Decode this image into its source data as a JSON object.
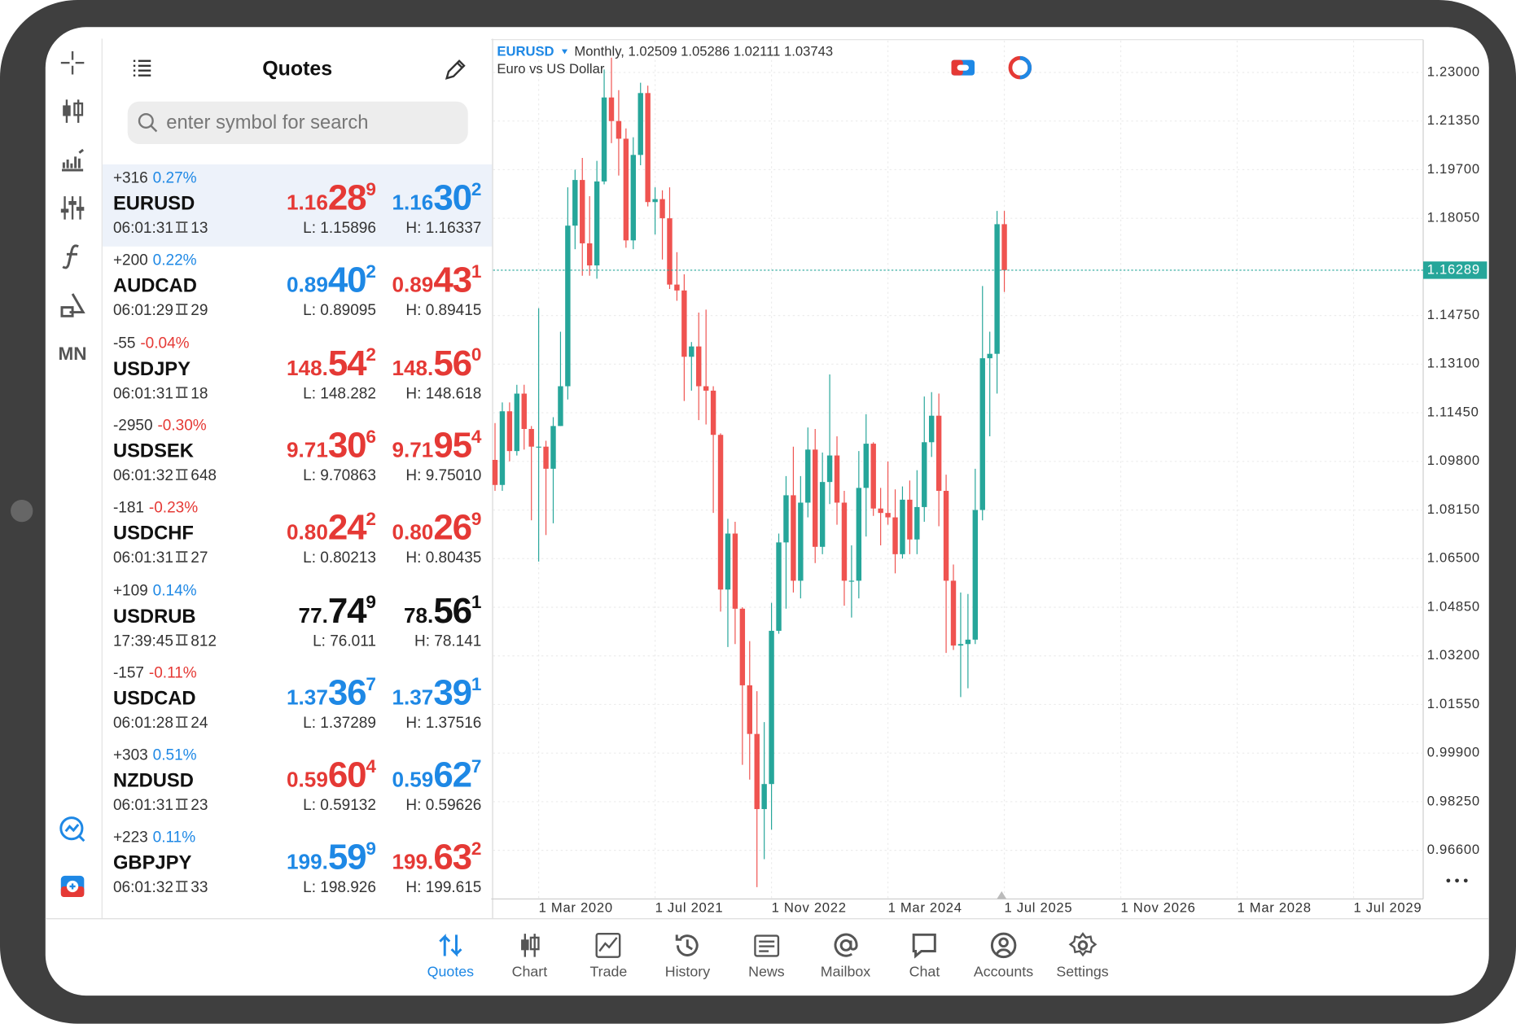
{
  "header": {
    "title": "Quotes"
  },
  "search_placeholder": "enter symbol for search",
  "toolbar_timeframe": "MN",
  "quotes": [
    {
      "change": "+316",
      "percent": "0.27%",
      "percent_color": "#1e88e5",
      "symbol": "EURUSD",
      "time": "06:01:31",
      "spread": "13",
      "bid": {
        "big": "1.16",
        "mid": "28",
        "sup": "9",
        "color": "#e53935"
      },
      "ask": {
        "big": "1.16",
        "mid": "30",
        "sup": "2",
        "color": "#1e88e5"
      },
      "low": "L: 1.15896",
      "high": "H: 1.16337",
      "selected": true
    },
    {
      "change": "+200",
      "percent": "0.22%",
      "percent_color": "#1e88e5",
      "symbol": "AUDCAD",
      "time": "06:01:29",
      "spread": "29",
      "bid": {
        "big": "0.89",
        "mid": "40",
        "sup": "2",
        "color": "#1e88e5"
      },
      "ask": {
        "big": "0.89",
        "mid": "43",
        "sup": "1",
        "color": "#e53935"
      },
      "low": "L: 0.89095",
      "high": "H: 0.89415"
    },
    {
      "change": "-55",
      "percent": "-0.04%",
      "percent_color": "#e53935",
      "symbol": "USDJPY",
      "time": "06:01:31",
      "spread": "18",
      "bid": {
        "big": "148.",
        "mid": "54",
        "sup": "2",
        "color": "#e53935"
      },
      "ask": {
        "big": "148.",
        "mid": "56",
        "sup": "0",
        "color": "#e53935"
      },
      "low": "L: 148.282",
      "high": "H: 148.618"
    },
    {
      "change": "-2950",
      "percent": "-0.30%",
      "percent_color": "#e53935",
      "symbol": "USDSEK",
      "time": "06:01:32",
      "spread": "648",
      "bid": {
        "big": "9.71",
        "mid": "30",
        "sup": "6",
        "color": "#e53935"
      },
      "ask": {
        "big": "9.71",
        "mid": "95",
        "sup": "4",
        "color": "#e53935"
      },
      "low": "L: 9.70863",
      "high": "H: 9.75010"
    },
    {
      "change": "-181",
      "percent": "-0.23%",
      "percent_color": "#e53935",
      "symbol": "USDCHF",
      "time": "06:01:31",
      "spread": "27",
      "bid": {
        "big": "0.80",
        "mid": "24",
        "sup": "2",
        "color": "#e53935"
      },
      "ask": {
        "big": "0.80",
        "mid": "26",
        "sup": "9",
        "color": "#e53935"
      },
      "low": "L: 0.80213",
      "high": "H: 0.80435"
    },
    {
      "change": "+109",
      "percent": "0.14%",
      "percent_color": "#1e88e5",
      "symbol": "USDRUB",
      "time": "17:39:45",
      "spread": "812",
      "bid": {
        "big": "77.",
        "mid": "74",
        "sup": "9",
        "color": "#111111"
      },
      "ask": {
        "big": "78.",
        "mid": "56",
        "sup": "1",
        "color": "#111111"
      },
      "low": "L: 76.011",
      "high": "H: 78.141"
    },
    {
      "change": "-157",
      "percent": "-0.11%",
      "percent_color": "#e53935",
      "symbol": "USDCAD",
      "time": "06:01:28",
      "spread": "24",
      "bid": {
        "big": "1.37",
        "mid": "36",
        "sup": "7",
        "color": "#1e88e5"
      },
      "ask": {
        "big": "1.37",
        "mid": "39",
        "sup": "1",
        "color": "#1e88e5"
      },
      "low": "L: 1.37289",
      "high": "H: 1.37516"
    },
    {
      "change": "+303",
      "percent": "0.51%",
      "percent_color": "#1e88e5",
      "symbol": "NZDUSD",
      "time": "06:01:31",
      "spread": "23",
      "bid": {
        "big": "0.59",
        "mid": "60",
        "sup": "4",
        "color": "#e53935"
      },
      "ask": {
        "big": "0.59",
        "mid": "62",
        "sup": "7",
        "color": "#1e88e5"
      },
      "low": "L: 0.59132",
      "high": "H: 0.59626"
    },
    {
      "change": "+223",
      "percent": "0.11%",
      "percent_color": "#1e88e5",
      "symbol": "GBPJPY",
      "time": "06:01:32",
      "spread": "33",
      "bid": {
        "big": "199.",
        "mid": "59",
        "sup": "9",
        "color": "#1e88e5"
      },
      "ask": {
        "big": "199.",
        "mid": "63",
        "sup": "2",
        "color": "#e53935"
      },
      "low": "L: 198.926",
      "high": "H: 199.615"
    }
  ],
  "chart_data": {
    "type": "candlestick",
    "symbol": "EURUSD",
    "info": "Monthly, 1.02509 1.05286 1.02111 1.03743",
    "description": "Euro vs US Dollar",
    "up_color": "#26a69a",
    "down_color": "#ef5350",
    "grid": true,
    "xlim": [
      "2019-08-23",
      "2030-04-18"
    ],
    "xticks": [
      {
        "value": "2020-03-01",
        "label": "1 Mar 2020"
      },
      {
        "value": "2021-07-01",
        "label": "1 Jul 2021"
      },
      {
        "value": "2022-11-01",
        "label": "1 Nov 2022"
      },
      {
        "value": "2024-03-01",
        "label": "1 Mar 2024"
      },
      {
        "value": "2025-07-01",
        "label": "1 Jul 2025"
      },
      {
        "value": "2026-11-01",
        "label": "1 Nov 2026"
      },
      {
        "value": "2028-03-01",
        "label": "1 Mar 2028"
      },
      {
        "value": "2029-07-01",
        "label": "1 Jul 2029"
      }
    ],
    "ylim": [
      0.9495,
      1.2408
    ],
    "yticks": [
      {
        "value": 1.23,
        "label": "1.23000"
      },
      {
        "value": 1.2135,
        "label": "1.21350"
      },
      {
        "value": 1.197,
        "label": "1.19700"
      },
      {
        "value": 1.1805,
        "label": "1.18050"
      },
      {
        "value": 1.1475,
        "label": "1.14750"
      },
      {
        "value": 1.131,
        "label": "1.13100"
      },
      {
        "value": 1.1145,
        "label": "1.11450"
      },
      {
        "value": 1.098,
        "label": "1.09800"
      },
      {
        "value": 1.0815,
        "label": "1.08150"
      },
      {
        "value": 1.065,
        "label": "1.06500"
      },
      {
        "value": 1.0485,
        "label": "1.04850"
      },
      {
        "value": 1.032,
        "label": "1.03200"
      },
      {
        "value": 1.0155,
        "label": "1.01550"
      },
      {
        "value": 0.999,
        "label": "0.99900"
      },
      {
        "value": 0.9825,
        "label": "0.98250"
      },
      {
        "value": 0.966,
        "label": "0.96600"
      }
    ],
    "last_price": {
      "value": 1.16289,
      "label": "1.16289"
    },
    "x": [
      "2019-09-01",
      "2019-10-01",
      "2019-11-01",
      "2019-12-01",
      "2020-01-01",
      "2020-02-01",
      "2020-03-01",
      "2020-04-01",
      "2020-05-01",
      "2020-06-01",
      "2020-07-01",
      "2020-08-01",
      "2020-09-01",
      "2020-10-01",
      "2020-11-01",
      "2020-12-01",
      "2021-01-01",
      "2021-02-01",
      "2021-03-01",
      "2021-04-01",
      "2021-05-01",
      "2021-06-01",
      "2021-07-01",
      "2021-08-01",
      "2021-09-01",
      "2021-10-01",
      "2021-11-01",
      "2021-12-01",
      "2022-01-01",
      "2022-02-01",
      "2022-03-01",
      "2022-04-01",
      "2022-05-01",
      "2022-06-01",
      "2022-07-01",
      "2022-08-01",
      "2022-09-01",
      "2022-10-01",
      "2022-11-01",
      "2022-12-01",
      "2023-01-01",
      "2023-02-01",
      "2023-03-01",
      "2023-04-01",
      "2023-05-01",
      "2023-06-01",
      "2023-07-01",
      "2023-08-01",
      "2023-09-01",
      "2023-10-01",
      "2023-11-01",
      "2023-12-01",
      "2024-01-01",
      "2024-02-01",
      "2024-03-01",
      "2024-04-01",
      "2024-05-01",
      "2024-06-01",
      "2024-07-01",
      "2024-08-01",
      "2024-09-01",
      "2024-10-01",
      "2024-11-01",
      "2024-12-01",
      "2025-01-01",
      "2025-02-01",
      "2025-03-01",
      "2025-04-01",
      "2025-05-01",
      "2025-06-01",
      "2025-07-01"
    ],
    "ohlc": [
      [
        1.0985,
        1.111,
        1.088,
        1.09
      ],
      [
        1.09,
        1.118,
        1.088,
        1.115
      ],
      [
        1.115,
        1.118,
        1.098,
        1.1015
      ],
      [
        1.1015,
        1.124,
        1.1,
        1.121
      ],
      [
        1.121,
        1.124,
        1.102,
        1.109
      ],
      [
        1.109,
        1.11,
        1.078,
        1.103
      ],
      [
        1.103,
        1.15,
        1.064,
        1.103
      ],
      [
        1.103,
        1.105,
        1.073,
        1.0955
      ],
      [
        1.0955,
        1.113,
        1.077,
        1.11
      ],
      [
        1.11,
        1.142,
        1.11,
        1.1235
      ],
      [
        1.1235,
        1.191,
        1.119,
        1.178
      ],
      [
        1.178,
        1.197,
        1.17,
        1.1935
      ],
      [
        1.1935,
        1.201,
        1.161,
        1.172
      ],
      [
        1.172,
        1.188,
        1.161,
        1.1645
      ],
      [
        1.1645,
        1.2,
        1.16,
        1.193
      ],
      [
        1.193,
        1.231,
        1.192,
        1.2215
      ],
      [
        1.2215,
        1.235,
        1.206,
        1.2135
      ],
      [
        1.2135,
        1.224,
        1.195,
        1.2075
      ],
      [
        1.2075,
        1.211,
        1.1705,
        1.173
      ],
      [
        1.173,
        1.208,
        1.17,
        1.202
      ],
      [
        1.202,
        1.2265,
        1.1985,
        1.223
      ],
      [
        1.223,
        1.2255,
        1.1845,
        1.186
      ],
      [
        1.186,
        1.191,
        1.175,
        1.187
      ],
      [
        1.187,
        1.19,
        1.1665,
        1.1805
      ],
      [
        1.1805,
        1.191,
        1.1565,
        1.158
      ],
      [
        1.158,
        1.169,
        1.1525,
        1.156
      ],
      [
        1.156,
        1.1615,
        1.1185,
        1.1335
      ],
      [
        1.1335,
        1.1385,
        1.122,
        1.137
      ],
      [
        1.137,
        1.1485,
        1.112,
        1.1235
      ],
      [
        1.1235,
        1.1495,
        1.1105,
        1.122
      ],
      [
        1.122,
        1.1235,
        1.0805,
        1.107
      ],
      [
        1.107,
        1.1075,
        1.047,
        1.0545
      ],
      [
        1.0545,
        1.0785,
        1.035,
        1.0735
      ],
      [
        1.0735,
        1.0775,
        1.036,
        1.048
      ],
      [
        1.048,
        1.0485,
        0.995,
        1.022
      ],
      [
        1.022,
        1.037,
        0.99,
        1.0055
      ],
      [
        1.0055,
        1.02,
        0.9535,
        0.98
      ],
      [
        0.98,
        1.0095,
        0.963,
        0.9885
      ],
      [
        0.9885,
        1.05,
        0.973,
        1.0405
      ],
      [
        1.0405,
        1.0735,
        1.0395,
        1.0705
      ],
      [
        1.0705,
        1.093,
        1.048,
        1.0865
      ],
      [
        1.0865,
        1.103,
        1.0535,
        1.0575
      ],
      [
        1.0575,
        1.093,
        1.0515,
        1.084
      ],
      [
        1.084,
        1.1095,
        1.079,
        1.102
      ],
      [
        1.102,
        1.109,
        1.0635,
        1.069
      ],
      [
        1.069,
        1.101,
        1.0665,
        1.091
      ],
      [
        1.091,
        1.1275,
        1.0835,
        1.1
      ],
      [
        1.1,
        1.1065,
        1.0765,
        1.084
      ],
      [
        1.084,
        1.088,
        1.049,
        1.0575
      ],
      [
        1.0575,
        1.0695,
        1.045,
        1.0575
      ],
      [
        1.0575,
        1.1015,
        1.0515,
        1.089
      ],
      [
        1.089,
        1.114,
        1.0725,
        1.104
      ],
      [
        1.104,
        1.1045,
        1.0795,
        1.082
      ],
      [
        1.082,
        1.089,
        1.0695,
        1.0805
      ],
      [
        1.0805,
        1.098,
        1.0765,
        1.079
      ],
      [
        1.079,
        1.0885,
        1.06,
        1.0665
      ],
      [
        1.0665,
        1.0895,
        1.065,
        1.085
      ],
      [
        1.085,
        1.0915,
        1.0665,
        1.0715
      ],
      [
        1.0715,
        1.095,
        1.0665,
        1.0825
      ],
      [
        1.0825,
        1.12,
        1.0775,
        1.1045
      ],
      [
        1.1045,
        1.1215,
        1.0995,
        1.1135
      ],
      [
        1.1135,
        1.121,
        1.076,
        1.088
      ],
      [
        1.088,
        1.0935,
        1.033,
        1.0575
      ],
      [
        1.0575,
        1.063,
        1.034,
        1.0355
      ],
      [
        1.0355,
        1.0535,
        1.018,
        1.036
      ],
      [
        1.036,
        1.053,
        1.021,
        1.0375
      ],
      [
        1.0375,
        1.0955,
        1.036,
        1.0815
      ],
      [
        1.0815,
        1.1575,
        1.078,
        1.133
      ],
      [
        1.133,
        1.142,
        1.1065,
        1.1345
      ],
      [
        1.1345,
        1.183,
        1.121,
        1.1785
      ],
      [
        1.1785,
        1.183,
        1.1555,
        1.1629
      ]
    ]
  },
  "tabs": [
    {
      "label": "Quotes",
      "active": true
    },
    {
      "label": "Chart"
    },
    {
      "label": "Trade"
    },
    {
      "label": "History"
    },
    {
      "label": "News"
    },
    {
      "label": "Mailbox"
    },
    {
      "label": "Chat"
    },
    {
      "label": "Accounts"
    },
    {
      "label": "Settings"
    }
  ]
}
